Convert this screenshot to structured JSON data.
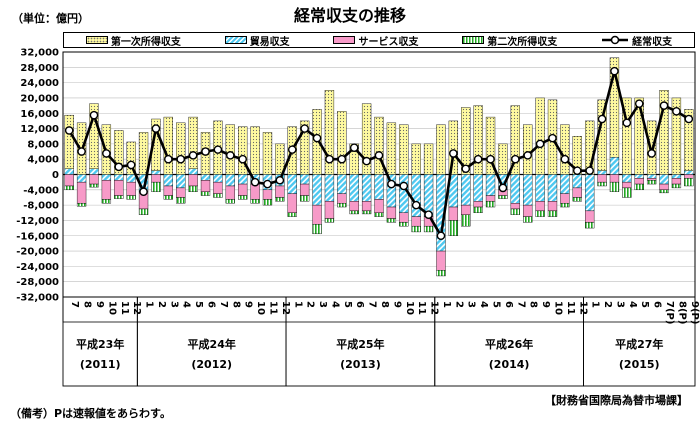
{
  "header": {
    "unit": "（単位：億円）",
    "title": "経常収支の推移"
  },
  "legend": [
    {
      "label": "第一次所得収支",
      "color": "#fffaa0",
      "pattern": "dots"
    },
    {
      "label": "貿易収支",
      "color": "#4dc8f0",
      "pattern": "diag"
    },
    {
      "label": "サービス収支",
      "color": "#f79ac8",
      "pattern": "solid"
    },
    {
      "label": "第二次所得収支",
      "color": "#22a822",
      "pattern": "vstripe"
    },
    {
      "label": "経常収支",
      "color": "#000000",
      "pattern": "line"
    }
  ],
  "footnote": "（備考）Pは速報値をあらわす。",
  "source": "【財務省国際局為替市場課】",
  "chart_data": {
    "type": "bar",
    "stacked": true,
    "ylim": [
      -32000,
      32000
    ],
    "yticks": [
      32000,
      28000,
      24000,
      20000,
      16000,
      12000,
      8000,
      4000,
      0,
      -4000,
      -8000,
      -12000,
      -16000,
      -20000,
      -24000,
      -28000,
      -32000
    ],
    "ytick_labels": [
      "32,000",
      "28,000",
      "24,000",
      "20,000",
      "16,000",
      "12,000",
      "8,000",
      "4,000",
      "0",
      "-4,000",
      "-8,000",
      "-12,000",
      "-16,000",
      "-20,000",
      "-24,000",
      "-28,000",
      "-32,000"
    ],
    "categories": [
      "7",
      "8",
      "9",
      "10",
      "11",
      "12",
      "1",
      "2",
      "3",
      "4",
      "5",
      "6",
      "7",
      "8",
      "9",
      "10",
      "11",
      "12",
      "1",
      "2",
      "3",
      "4",
      "5",
      "6",
      "7",
      "8",
      "9",
      "10",
      "11",
      "12",
      "1",
      "2",
      "3",
      "4",
      "5",
      "6",
      "7",
      "8",
      "9",
      "10",
      "11",
      "12",
      "1",
      "2",
      "3",
      "4",
      "5",
      "6",
      "7(P)",
      "8(P)",
      "9(P)"
    ],
    "year_groups": [
      {
        "label": "平成23年",
        "sub": "(2011)",
        "start": 0,
        "count": 6
      },
      {
        "label": "平成24年",
        "sub": "(2012)",
        "start": 6,
        "count": 12
      },
      {
        "label": "平成25年",
        "sub": "(2013)",
        "start": 18,
        "count": 12
      },
      {
        "label": "平成26年",
        "sub": "(2014)",
        "start": 30,
        "count": 12
      },
      {
        "label": "平成27年",
        "sub": "(2015)",
        "start": 42,
        "count": 9
      }
    ],
    "series": [
      {
        "name": "第一次所得収支",
        "values": [
          14000,
          13500,
          17000,
          13000,
          11500,
          8500,
          11000,
          13500,
          15000,
          13500,
          13500,
          11000,
          14000,
          13000,
          12500,
          12500,
          11000,
          8000,
          12500,
          14000,
          17000,
          22000,
          16500,
          8000,
          18500,
          15000,
          13500,
          13000,
          8000,
          8000,
          13000,
          14000,
          17500,
          18000,
          15000,
          8000,
          18000,
          13000,
          20000,
          19500,
          13000,
          10000,
          14000,
          18500,
          26000,
          20000,
          20000,
          14000,
          22000,
          20000,
          16000
        ],
        "dx": [
          -1000,
          0,
          1500,
          0,
          0,
          0,
          0,
          1000,
          0,
          0,
          0,
          0,
          0,
          0,
          0,
          0,
          0,
          0,
          0,
          0,
          0,
          0,
          0,
          0,
          0,
          0,
          0,
          0,
          0,
          0,
          0,
          0,
          0,
          0,
          0,
          0,
          0,
          0,
          0,
          0,
          0,
          0,
          0,
          0,
          0,
          0,
          0,
          0,
          0,
          0,
          0
        ]
      },
      {
        "name": "貿易収支",
        "values": [
          1500,
          -2000,
          1500,
          -1500,
          -1500,
          -2000,
          -4500,
          1000,
          -3000,
          -3500,
          1500,
          -1500,
          -2000,
          -3000,
          -2500,
          -2500,
          -4000,
          -3000,
          -5000,
          -2500,
          -8000,
          -7000,
          -5000,
          -7000,
          -7000,
          -6500,
          -8500,
          -10000,
          -11000,
          -11000,
          -20000,
          -8500,
          -8000,
          -7000,
          -5500,
          -4000,
          -7500,
          -8000,
          -7000,
          -7000,
          -5000,
          -3500,
          -9500,
          1000,
          4500,
          -2000,
          -1000,
          -1000,
          -2500,
          -1000,
          1000
        ]
      },
      {
        "name": "サービス収支",
        "values": [
          -3000,
          -5500,
          -2500,
          -5000,
          -4000,
          -3500,
          -4500,
          -2000,
          -2500,
          -2500,
          -3000,
          -3000,
          -3000,
          -3500,
          -3000,
          -4000,
          -2500,
          -3000,
          -5000,
          -3000,
          -5000,
          -4500,
          -2500,
          -2500,
          -2500,
          -3500,
          -3000,
          -2500,
          -2500,
          -2500,
          -5000,
          -3500,
          -2500,
          -1500,
          -1500,
          -1500,
          -1500,
          -3000,
          -2500,
          -2500,
          -2500,
          -2500,
          -3000,
          -2000,
          -2000,
          -1500,
          -1500,
          -500,
          -1500,
          -1500,
          -1000
        ],
        "top": [
          0,
          -2000,
          0,
          -1500,
          -1500,
          -2000,
          -4500,
          0,
          -3000,
          -3500,
          0,
          -1500,
          -2000,
          -3000,
          -2500,
          -2500,
          -4000,
          -3000,
          -5000,
          -2500,
          -8000,
          -7000,
          -5000,
          -7000,
          -7000,
          -6500,
          -8500,
          -10000,
          -11000,
          -11000,
          -20000,
          -8500,
          -8000,
          -7000,
          -5500,
          -4000,
          -7500,
          -8000,
          -7000,
          -7000,
          -5000,
          -3500,
          -9500,
          0,
          0,
          -2000,
          -1000,
          -1000,
          -2500,
          -1000,
          0
        ]
      },
      {
        "name": "第二次所得収支",
        "values": [
          -1000,
          -800,
          -800,
          -1000,
          -800,
          -1000,
          -1500,
          -2500,
          -1000,
          -1500,
          -1500,
          -1000,
          -1000,
          -1000,
          -1000,
          -1000,
          -1500,
          -1000,
          -1000,
          -1500,
          -2500,
          -1000,
          -1000,
          -800,
          -800,
          -1000,
          -1000,
          -1000,
          -1500,
          -1500,
          -1500,
          -4000,
          -3000,
          -1500,
          -1500,
          -800,
          -1500,
          -1500,
          -1500,
          -1500,
          -1000,
          -1000,
          -1500,
          -1000,
          -2500,
          -2500,
          -1500,
          -1000,
          -800,
          -1000,
          -2000
        ]
      },
      {
        "name": "経常収支",
        "type": "line",
        "values": [
          11500,
          6000,
          15500,
          5500,
          2000,
          2500,
          -4500,
          12000,
          4000,
          4000,
          5000,
          6000,
          6500,
          5000,
          4000,
          -2000,
          -2500,
          -1500,
          6500,
          12000,
          9500,
          4000,
          4000,
          7000,
          3500,
          5000,
          -2500,
          -3000,
          -8000,
          -10500,
          -16000,
          5500,
          1500,
          4000,
          4000,
          -3500,
          4000,
          5000,
          8000,
          9500,
          4000,
          1000,
          1000,
          14500,
          27000,
          13500,
          18500,
          5500,
          18000,
          16500,
          14500
        ]
      }
    ]
  }
}
